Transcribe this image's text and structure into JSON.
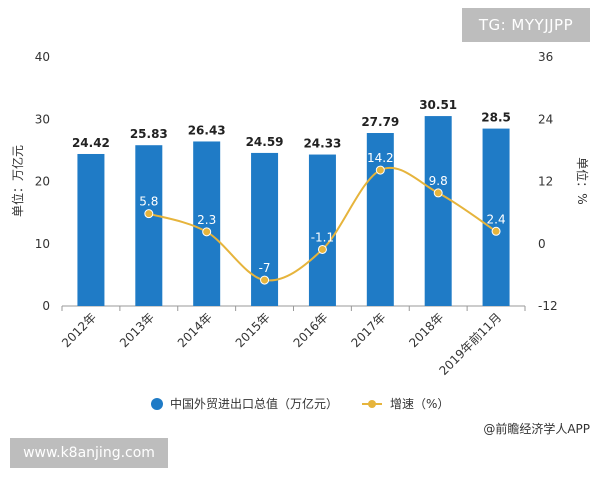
{
  "watermark_tag": "TG: MYYJJPP",
  "watermark_site": "www.k8anjing.com",
  "source": "@前瞻经济学人APP",
  "chart_data": {
    "type": "bar+line",
    "categories": [
      "2012年",
      "2013年",
      "2014年",
      "2015年",
      "2016年",
      "2017年",
      "2018年",
      "2019年前11月"
    ],
    "series": [
      {
        "name": "中国外贸进出口总值（万亿元）",
        "type": "bar",
        "axis": "left",
        "values": [
          24.42,
          25.83,
          26.43,
          24.59,
          24.33,
          27.79,
          30.51,
          28.5
        ],
        "labels": [
          "24.42",
          "25.83",
          "26.43",
          "24.59",
          "24.33",
          "27.79",
          "30.51",
          "28.5"
        ],
        "color": "#1f7bc6"
      },
      {
        "name": "增速（%）",
        "type": "line",
        "axis": "right",
        "values": [
          null,
          5.8,
          2.3,
          -7,
          -1.1,
          14.2,
          9.8,
          2.4
        ],
        "labels": [
          "",
          "5.8",
          "2.3",
          "-7",
          "-1.1",
          "14.2",
          "9.8",
          "2.4"
        ],
        "color": "#e6b43c"
      }
    ],
    "ylabel_left": "单位：万亿元",
    "ylabel_right": "单位：%",
    "ylim_left": [
      0,
      40
    ],
    "ylim_right": [
      -12,
      36
    ],
    "yticks_left": [
      "0",
      "10",
      "20",
      "30",
      "40"
    ],
    "yticks_right": [
      "-12",
      "0",
      "12",
      "24",
      "36"
    ],
    "grid": false,
    "legend": "bottom"
  }
}
